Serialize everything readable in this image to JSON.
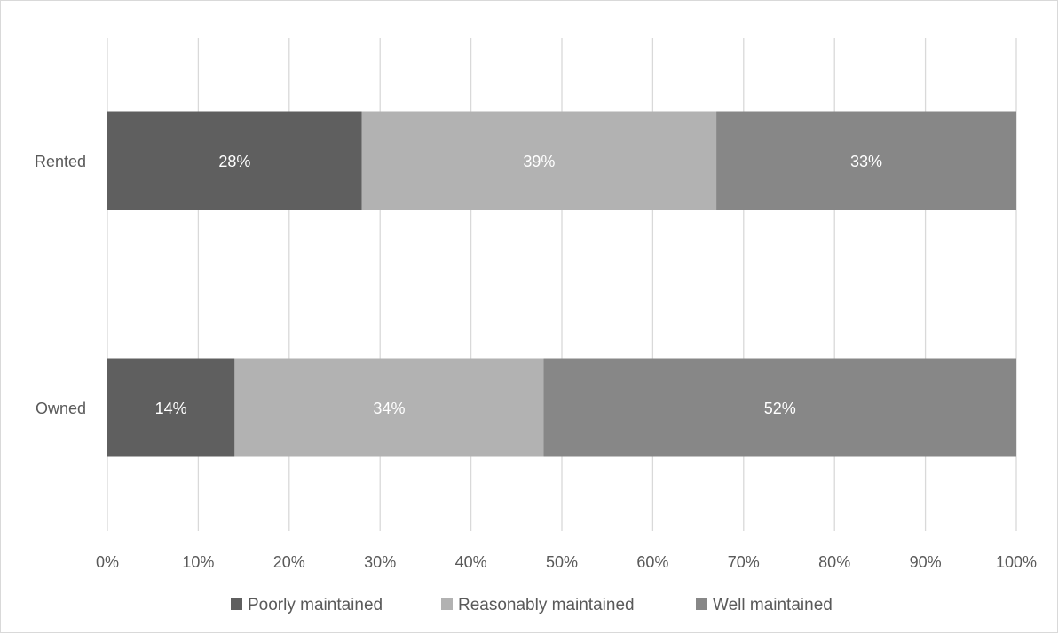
{
  "chart_data": {
    "type": "bar",
    "orientation": "horizontal",
    "stacked": "percent",
    "categories": [
      "Rented",
      "Owned"
    ],
    "series": [
      {
        "name": "Poorly maintained",
        "values": [
          28,
          14
        ],
        "labels": [
          "28%",
          "14%"
        ],
        "color": "#5f5f5f"
      },
      {
        "name": "Reasonably maintained",
        "values": [
          39,
          34
        ],
        "labels": [
          "39%",
          "34%"
        ],
        "color": "#b2b2b2"
      },
      {
        "name": "Well maintained",
        "values": [
          33,
          52
        ],
        "labels": [
          "33%",
          "52%"
        ],
        "color": "#878787"
      }
    ],
    "xlim": [
      0,
      100
    ],
    "x_ticks": [
      "0%",
      "10%",
      "20%",
      "30%",
      "40%",
      "50%",
      "60%",
      "70%",
      "80%",
      "90%",
      "100%"
    ],
    "grid": "vertical",
    "legend_position": "bottom",
    "title": "",
    "xlabel": "",
    "ylabel": ""
  }
}
